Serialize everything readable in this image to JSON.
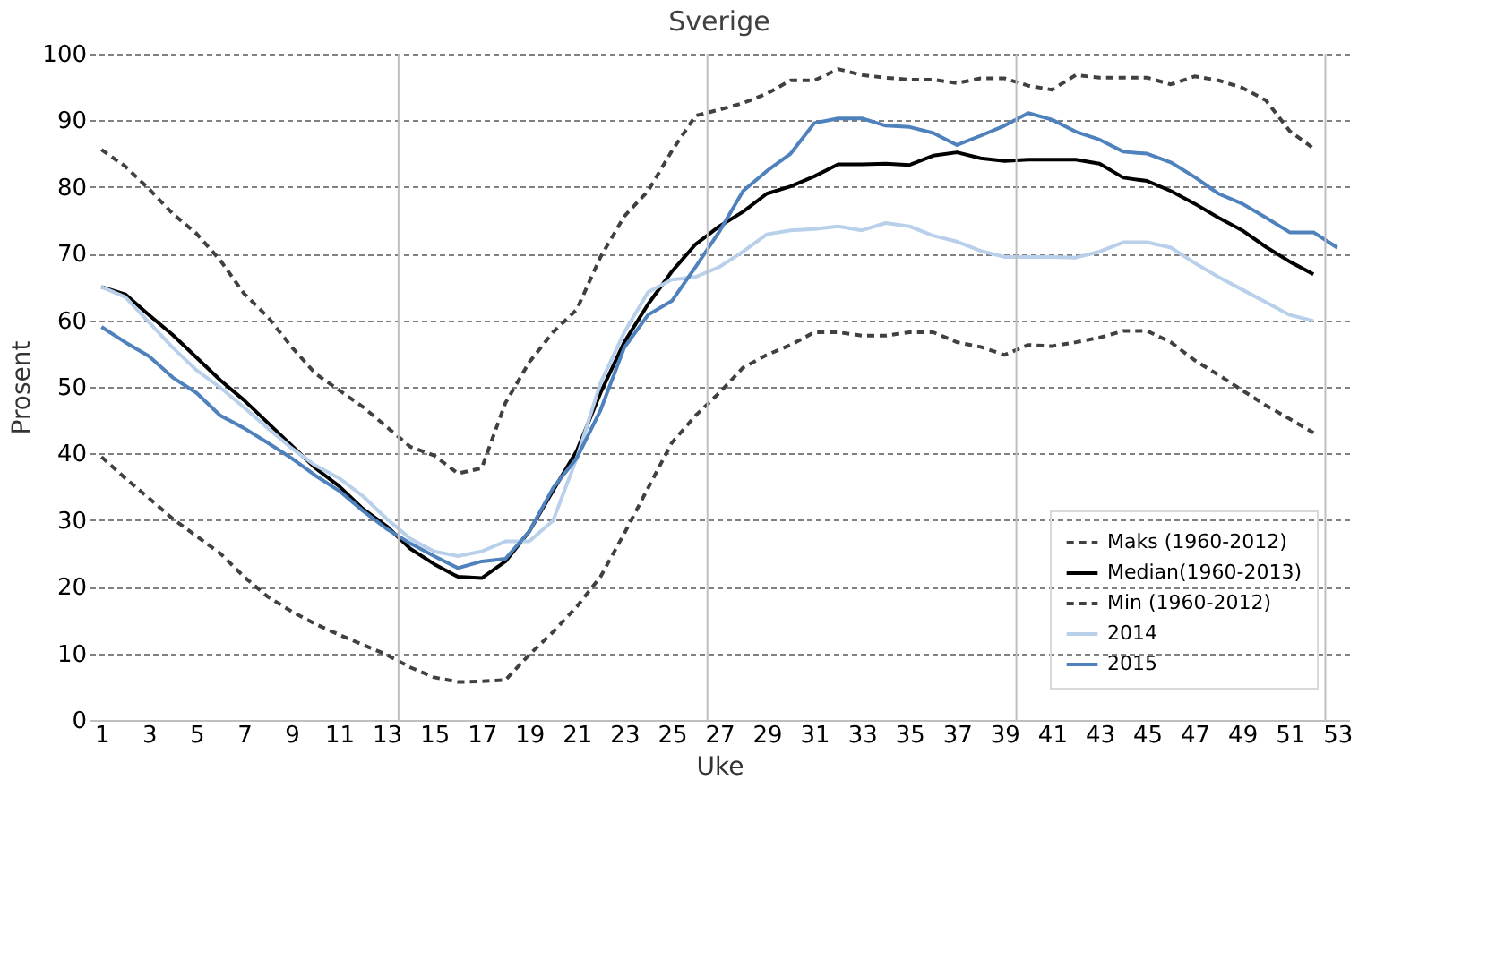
{
  "chart_data": {
    "type": "line",
    "title": "Sverige",
    "xlabel": "Uke",
    "ylabel": "Prosent",
    "x": [
      1,
      2,
      3,
      4,
      5,
      6,
      7,
      8,
      9,
      10,
      11,
      12,
      13,
      14,
      15,
      16,
      17,
      18,
      19,
      20,
      21,
      22,
      23,
      24,
      25,
      26,
      27,
      28,
      29,
      30,
      31,
      32,
      33,
      34,
      35,
      36,
      37,
      38,
      39,
      40,
      41,
      42,
      43,
      44,
      45,
      46,
      47,
      48,
      49,
      50,
      51,
      52,
      53
    ],
    "xlim": [
      0.5,
      53.5
    ],
    "xticks": [
      1,
      3,
      5,
      7,
      9,
      11,
      13,
      15,
      17,
      19,
      21,
      23,
      25,
      27,
      29,
      31,
      33,
      35,
      37,
      39,
      41,
      43,
      45,
      47,
      49,
      51,
      53
    ],
    "ylim": [
      0,
      100
    ],
    "yticks": [
      0,
      10,
      20,
      30,
      40,
      50,
      60,
      70,
      80,
      90,
      100
    ],
    "grid": "y",
    "legend": "bottom right",
    "marker": "none",
    "ref_lines": [
      {
        "axis": "x",
        "value": 13.5,
        "color": "#bfbfbf"
      },
      {
        "axis": "x",
        "value": 26.5,
        "color": "#bfbfbf"
      },
      {
        "axis": "x",
        "value": 39.5,
        "color": "#bfbfbf"
      },
      {
        "axis": "x",
        "value": 52.5,
        "color": "#bfbfbf"
      }
    ],
    "series": [
      {
        "name": "Maks (1960-2012)",
        "color": "#404040",
        "line_style": "dashed",
        "values": [
          85.6,
          83.1,
          79.7,
          76,
          73,
          69,
          64,
          60.5,
          56,
          52,
          49.5,
          47,
          44,
          41,
          39.7,
          37,
          37.8,
          47.6,
          53.7,
          58.2,
          61.6,
          69.5,
          75.6,
          79.4,
          85.4,
          90.7,
          91.6,
          92.6,
          94,
          96,
          96,
          97.7,
          96.8,
          96.4,
          96.1,
          96.1,
          95.6,
          96.3,
          96.3,
          95.2,
          94.6,
          96.8,
          96.4,
          96.4,
          96.4,
          95.4,
          96.6,
          96,
          94.9,
          93,
          88.4,
          85.8,
          null
        ]
      },
      {
        "name": "Median(1960-2013)",
        "color": "#000000",
        "line_style": "solid",
        "values": [
          65,
          63.9,
          60.8,
          57.8,
          54.4,
          51,
          48,
          44.6,
          41.2,
          37.8,
          35.1,
          31.7,
          29.1,
          25.7,
          23.4,
          21.5,
          21.3,
          23.8,
          28.3,
          34.4,
          40.4,
          49.1,
          56.7,
          62.4,
          67.3,
          71.4,
          74.1,
          76.3,
          79,
          80.1,
          81.6,
          83.4,
          83.4,
          83.5,
          83.3,
          84.7,
          85.2,
          84.3,
          83.9,
          84.1,
          84.1,
          84.1,
          83.5,
          81.4,
          80.9,
          79.4,
          77.5,
          75.4,
          73.5,
          71,
          68.8,
          66.9,
          null
        ]
      },
      {
        "name": "Min (1960-2012)",
        "color": "#404040",
        "line_style": "dashed",
        "values": [
          39.5,
          36.3,
          33.3,
          30.2,
          27.6,
          25,
          21.5,
          18.5,
          16.3,
          14.4,
          12.8,
          11.3,
          9.8,
          7.9,
          6.4,
          5.7,
          5.8,
          6,
          9.8,
          13.2,
          17,
          21.5,
          28,
          34.8,
          41.6,
          45.7,
          49.1,
          52.9,
          54.8,
          56.3,
          58.2,
          58.2,
          57.7,
          57.7,
          58.2,
          58.2,
          56.7,
          56,
          54.8,
          56.3,
          56.1,
          56.7,
          57.4,
          58.4,
          58.4,
          56.7,
          54,
          51.8,
          49.5,
          47.2,
          45.2,
          43.1,
          null
        ]
      },
      {
        "name": "2014",
        "color": "#b9d0ea",
        "line_style": "solid",
        "values": [
          65,
          63.5,
          59.7,
          55.9,
          52.5,
          49.9,
          46.9,
          43.8,
          40.8,
          38.2,
          36.3,
          33.6,
          30.2,
          27.2,
          25.3,
          24.6,
          25.3,
          26.8,
          26.8,
          29.9,
          39.3,
          50.6,
          58.2,
          64.2,
          66.1,
          66.5,
          68,
          70.3,
          72.9,
          73.5,
          73.7,
          74.1,
          73.5,
          74.6,
          74.1,
          72.7,
          71.8,
          70.4,
          69.5,
          69.5,
          69.5,
          69.4,
          70.3,
          71.7,
          71.7,
          70.9,
          68.6,
          66.5,
          64.6,
          62.7,
          60.8,
          59.9,
          null
        ]
      },
      {
        "name": "2015",
        "color": "#4f81bd",
        "line_style": "solid",
        "values": [
          59,
          56.7,
          54.6,
          51.4,
          49.1,
          45.7,
          43.8,
          41.6,
          39.3,
          36.7,
          34.4,
          31.4,
          28.7,
          26.5,
          24.6,
          22.8,
          23.8,
          24.2,
          28.3,
          34.8,
          39.3,
          46.5,
          55.9,
          60.8,
          62.9,
          68,
          73.3,
          79.4,
          82.4,
          85,
          89.6,
          90.3,
          90.3,
          89.2,
          89,
          88.1,
          86.3,
          87.7,
          89.2,
          91.1,
          90.1,
          88.3,
          87.1,
          85.3,
          85,
          83.7,
          81.5,
          79,
          77.5,
          75.4,
          73.2,
          73.2,
          70.9
        ]
      }
    ]
  }
}
